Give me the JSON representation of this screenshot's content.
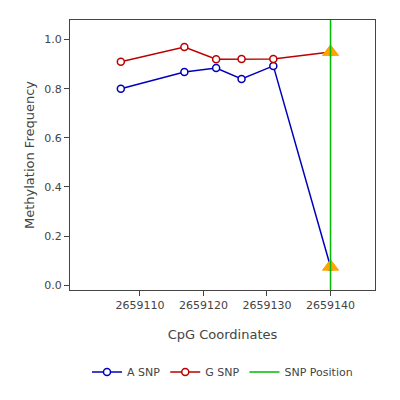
{
  "chart_data": {
    "type": "line",
    "xlabel": "CpG Coordinates",
    "ylabel": "Methylation Frequency",
    "series": [
      {
        "name": "A SNP",
        "color": "#0000BB",
        "marker": "open circle",
        "line_style": "solid",
        "x": [
          2659107,
          2659117,
          2659122,
          2659126,
          2659131,
          2659140
        ],
        "values": [
          0.8,
          0.868,
          0.884,
          0.84,
          0.893,
          0.075
        ]
      },
      {
        "name": "G SNP",
        "color": "#BB0000",
        "marker": "open circle",
        "line_style": "solid",
        "x": [
          2659107,
          2659117,
          2659122,
          2659126,
          2659131,
          2659140
        ],
        "values": [
          0.91,
          0.97,
          0.92,
          0.921,
          0.921,
          0.95
        ]
      },
      {
        "type": "scatter",
        "color": "#FFA500",
        "marker": "triangle",
        "x": [
          2659140,
          2659140
        ],
        "values": [
          0.075,
          0.95
        ]
      },
      {
        "name": "SNP Position",
        "type": "vline",
        "color": "#00BB00",
        "line_style": "solid",
        "x": [
          2659140
        ]
      }
    ],
    "xlim": [
      2659099,
      2659147
    ],
    "ylim": [
      -0.02,
      1.08
    ],
    "xticks": [
      2659110,
      2659120,
      2659130,
      2659140
    ],
    "yticks": [
      {
        "value": 0.0,
        "label": "0.0"
      },
      0.2,
      0.4,
      0.6,
      0.8,
      {
        "value": 1.0,
        "label": "1.0"
      }
    ],
    "grid": false,
    "legend": "bottom"
  }
}
